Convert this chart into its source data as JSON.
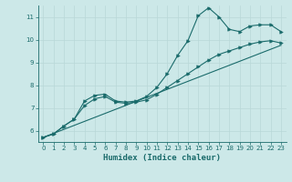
{
  "xlabel": "Humidex (Indice chaleur)",
  "ylabel": "",
  "bg_color": "#cce8e8",
  "line_color": "#1a6b6b",
  "grid_color": "#b8d8d8",
  "xlim": [
    -0.5,
    23.5
  ],
  "ylim": [
    5.5,
    11.5
  ],
  "xticks": [
    0,
    1,
    2,
    3,
    4,
    5,
    6,
    7,
    8,
    9,
    10,
    11,
    12,
    13,
    14,
    15,
    16,
    17,
    18,
    19,
    20,
    21,
    22,
    23
  ],
  "yticks": [
    6,
    7,
    8,
    9,
    10,
    11
  ],
  "line1_x": [
    0,
    1,
    2,
    3,
    4,
    5,
    6,
    7,
    8,
    9,
    10,
    11,
    12,
    13,
    14,
    15,
    16,
    17,
    18,
    19,
    20,
    21,
    22,
    23
  ],
  "line1_y": [
    5.7,
    5.85,
    6.2,
    6.5,
    7.3,
    7.55,
    7.6,
    7.3,
    7.25,
    7.3,
    7.5,
    7.9,
    8.5,
    9.3,
    9.95,
    11.05,
    11.4,
    11.0,
    10.45,
    10.35,
    10.6,
    10.65,
    10.65,
    10.35
  ],
  "line2_x": [
    0,
    1,
    2,
    3,
    4,
    5,
    6,
    7,
    8,
    9,
    10,
    11,
    12,
    13,
    14,
    15,
    16,
    17,
    18,
    19,
    20,
    21,
    22,
    23
  ],
  "line2_y": [
    5.7,
    5.85,
    6.2,
    6.5,
    7.1,
    7.4,
    7.5,
    7.25,
    7.2,
    7.25,
    7.35,
    7.6,
    7.9,
    8.2,
    8.5,
    8.8,
    9.1,
    9.35,
    9.5,
    9.65,
    9.8,
    9.9,
    9.95,
    9.85
  ],
  "line3_x": [
    0,
    23
  ],
  "line3_y": [
    5.7,
    9.75
  ]
}
